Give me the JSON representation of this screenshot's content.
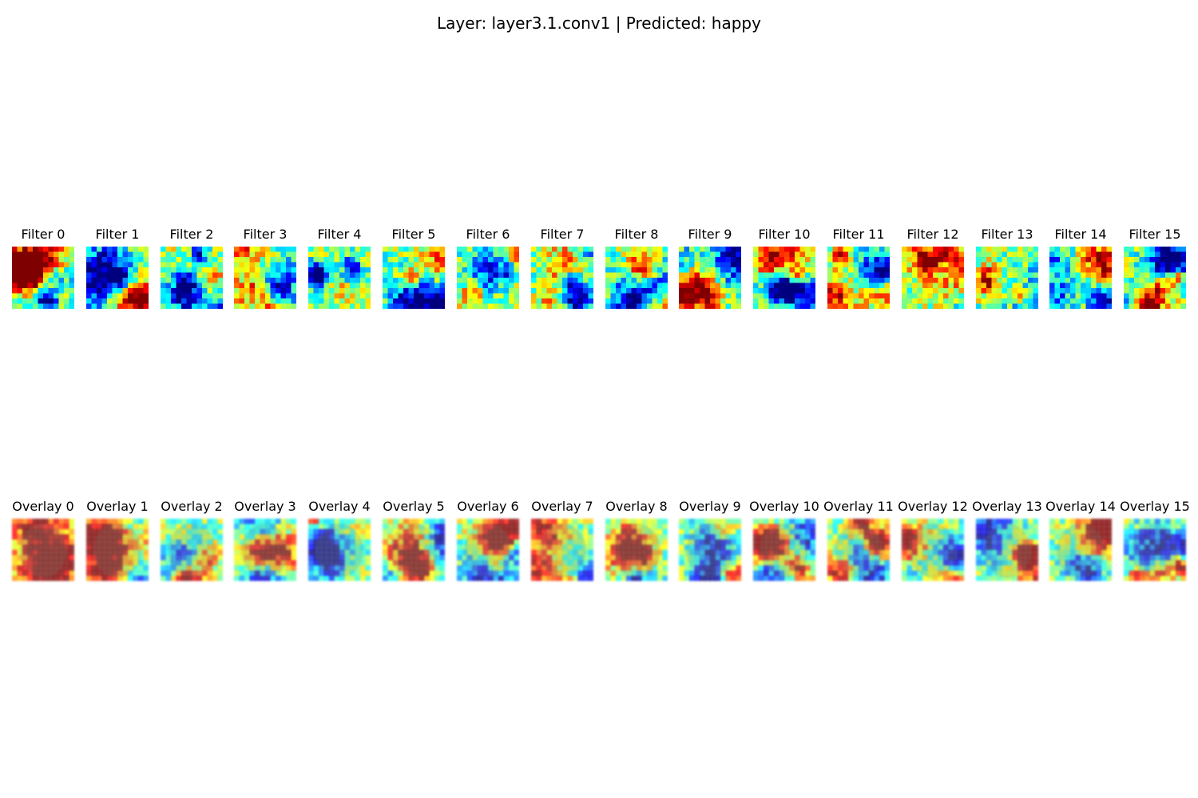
{
  "figure": {
    "title": "Layer: layer3.1.conv1 | Predicted: happy"
  },
  "colormap": {
    "name": "jet",
    "stops": [
      "#00007f",
      "#0000ff",
      "#007fff",
      "#00ffff",
      "#7fff7f",
      "#ffff00",
      "#ff7f00",
      "#ff0000",
      "#7f0000"
    ]
  },
  "rows": [
    {
      "kind": "filter",
      "panels": [
        {
          "label": "Filter 0"
        },
        {
          "label": "Filter 1"
        },
        {
          "label": "Filter 2"
        },
        {
          "label": "Filter 3"
        },
        {
          "label": "Filter 4"
        },
        {
          "label": "Filter 5"
        },
        {
          "label": "Filter 6"
        },
        {
          "label": "Filter 7"
        },
        {
          "label": "Filter 8"
        },
        {
          "label": "Filter 9"
        },
        {
          "label": "Filter 10"
        },
        {
          "label": "Filter 11"
        },
        {
          "label": "Filter 12"
        },
        {
          "label": "Filter 13"
        },
        {
          "label": "Filter 14"
        },
        {
          "label": "Filter 15"
        }
      ]
    },
    {
      "kind": "overlay",
      "panels": [
        {
          "label": "Overlay 0"
        },
        {
          "label": "Overlay 1"
        },
        {
          "label": "Overlay 2"
        },
        {
          "label": "Overlay 3"
        },
        {
          "label": "Overlay 4"
        },
        {
          "label": "Overlay 5"
        },
        {
          "label": "Overlay 6"
        },
        {
          "label": "Overlay 7"
        },
        {
          "label": "Overlay 8"
        },
        {
          "label": "Overlay 9"
        },
        {
          "label": "Overlay 10"
        },
        {
          "label": "Overlay 11"
        },
        {
          "label": "Overlay 12"
        },
        {
          "label": "Overlay 13"
        },
        {
          "label": "Overlay 14"
        },
        {
          "label": "Overlay 15"
        }
      ]
    }
  ]
}
